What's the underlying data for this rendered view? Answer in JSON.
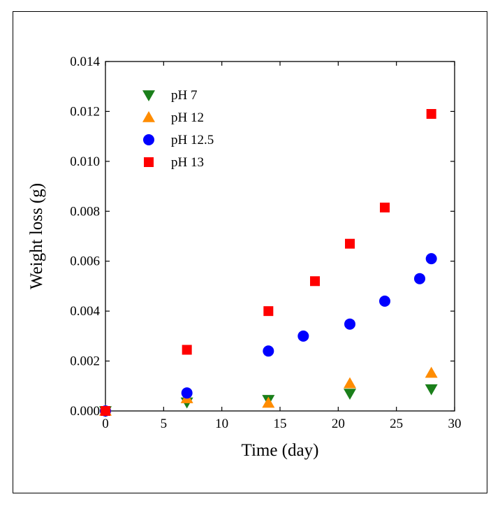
{
  "chart_data": {
    "type": "scatter",
    "title": "",
    "xlabel": "Time (day)",
    "ylabel": "Weight loss (g)",
    "xlim": [
      0,
      30
    ],
    "ylim": [
      0,
      0.014
    ],
    "x_ticks": [
      "0",
      "5",
      "10",
      "15",
      "20",
      "25",
      "30"
    ],
    "y_ticks": [
      "0.000",
      "0.002",
      "0.004",
      "0.006",
      "0.008",
      "0.010",
      "0.012",
      "0.014"
    ],
    "grid": false,
    "legend_position": "top-left",
    "series": [
      {
        "name": "pH 7",
        "marker": "triangle-down",
        "color": "#1a7f1a",
        "points": [
          [
            0,
            0.0
          ],
          [
            7,
            0.00035
          ],
          [
            14,
            0.00045
          ],
          [
            21,
            0.0007
          ],
          [
            28,
            0.00088
          ]
        ]
      },
      {
        "name": "pH 12",
        "marker": "triangle-up",
        "color": "#ff8c00",
        "points": [
          [
            0,
            0.0
          ],
          [
            7,
            0.0005
          ],
          [
            14,
            0.00032
          ],
          [
            21,
            0.0011
          ],
          [
            28,
            0.00152
          ]
        ]
      },
      {
        "name": "pH 12.5",
        "marker": "circle",
        "color": "#0000ff",
        "points": [
          [
            0,
            0.0
          ],
          [
            7,
            0.00072
          ],
          [
            14,
            0.0024
          ],
          [
            17,
            0.003
          ],
          [
            21,
            0.00348
          ],
          [
            24,
            0.0044
          ],
          [
            27,
            0.0053
          ],
          [
            28,
            0.0061
          ]
        ]
      },
      {
        "name": "pH 13",
        "marker": "square",
        "color": "#ff0000",
        "points": [
          [
            0,
            0.0
          ],
          [
            7,
            0.00245
          ],
          [
            14,
            0.004
          ],
          [
            18,
            0.0052
          ],
          [
            21,
            0.0067
          ],
          [
            24,
            0.00815
          ],
          [
            28,
            0.0119
          ]
        ]
      }
    ]
  }
}
